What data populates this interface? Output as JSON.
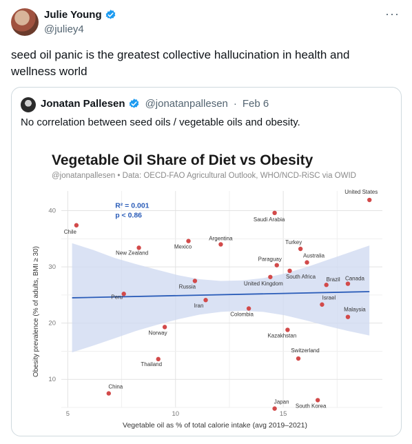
{
  "tweet": {
    "author_name": "Julie Young",
    "author_handle": "@juliey4",
    "more_label": "···",
    "text": "seed oil panic is the greatest collective hallucination in health and wellness world"
  },
  "quote": {
    "author_name": "Jonatan Pallesen",
    "author_handle": "@jonatanpallesen",
    "separator": "·",
    "date": "Feb 6",
    "text": "No correlation between seed oils / vegetable oils and obesity."
  },
  "colors": {
    "verified": "#1d9bf0",
    "point": "#d24a4a",
    "trend": "#2a5cb8",
    "band": "#cdd8f0",
    "stats": "#2a5cb8"
  },
  "chart_data": {
    "type": "scatter",
    "title": "Vegetable Oil Share of Diet vs Obesity",
    "subtitle": "@jonatanpallesen • Data: OECD-FAO Agricultural Outlook, WHO/NCD-RiSC via OWID",
    "xlabel": "Vegetable oil as % of total calorie intake (avg 2019–2021)",
    "ylabel": "Obesity prevalence (% of adults, BMI ≥ 30)",
    "xlim": [
      4.7,
      19.6
    ],
    "ylim": [
      5.0,
      43.5
    ],
    "xticks": [
      "5",
      "10",
      "15"
    ],
    "yticks": [
      "10",
      "20",
      "30",
      "40"
    ],
    "annotation_r2": "R² = 0.001",
    "annotation_p": "p < 0.86",
    "grid": true,
    "trend": {
      "x": [
        5.2,
        19.0
      ],
      "y": [
        24.5,
        25.6
      ]
    },
    "band_upper": [
      34.2,
      33.0,
      31.6,
      30.5,
      29.5,
      28.5,
      27.8,
      27.5,
      27.6,
      28.0,
      28.8,
      29.9,
      31.2,
      32.5,
      33.8
    ],
    "band_lower": [
      14.8,
      16.0,
      17.3,
      18.6,
      19.7,
      20.7,
      21.5,
      22.0,
      22.2,
      22.0,
      21.4,
      20.5,
      19.5,
      18.6,
      17.8
    ],
    "points": [
      {
        "label": "United States",
        "x": 19.0,
        "y": 41.9
      },
      {
        "label": "Saudi Arabia",
        "x": 14.6,
        "y": 39.6
      },
      {
        "label": "Chile",
        "x": 5.4,
        "y": 37.4
      },
      {
        "label": "Mexico",
        "x": 10.6,
        "y": 34.6
      },
      {
        "label": "Argentina",
        "x": 12.1,
        "y": 34.0
      },
      {
        "label": "New Zealand",
        "x": 8.3,
        "y": 33.4
      },
      {
        "label": "Turkey",
        "x": 15.8,
        "y": 33.2
      },
      {
        "label": "Australia",
        "x": 16.1,
        "y": 30.8
      },
      {
        "label": "Paraguay",
        "x": 14.7,
        "y": 30.3
      },
      {
        "label": "South Africa",
        "x": 15.3,
        "y": 29.3
      },
      {
        "label": "United Kingdom",
        "x": 14.4,
        "y": 28.2
      },
      {
        "label": "Russia",
        "x": 10.9,
        "y": 27.5
      },
      {
        "label": "Brazil",
        "x": 17.0,
        "y": 26.8
      },
      {
        "label": "Canada",
        "x": 18.0,
        "y": 27.0
      },
      {
        "label": "Peru",
        "x": 7.6,
        "y": 25.2
      },
      {
        "label": "Iran",
        "x": 11.4,
        "y": 24.1
      },
      {
        "label": "Israel",
        "x": 16.8,
        "y": 23.3
      },
      {
        "label": "Colombia",
        "x": 13.4,
        "y": 22.6
      },
      {
        "label": "Malaysia",
        "x": 18.0,
        "y": 21.1
      },
      {
        "label": "Norway",
        "x": 9.5,
        "y": 19.3
      },
      {
        "label": "Kazakhstan",
        "x": 15.2,
        "y": 18.8
      },
      {
        "label": "Thailand",
        "x": 9.2,
        "y": 13.6
      },
      {
        "label": "Switzerland",
        "x": 15.7,
        "y": 13.7
      },
      {
        "label": "China",
        "x": 6.9,
        "y": 7.5
      },
      {
        "label": "South Korea",
        "x": 16.6,
        "y": 6.3
      },
      {
        "label": "Japan",
        "x": 14.6,
        "y": 4.8
      }
    ]
  }
}
